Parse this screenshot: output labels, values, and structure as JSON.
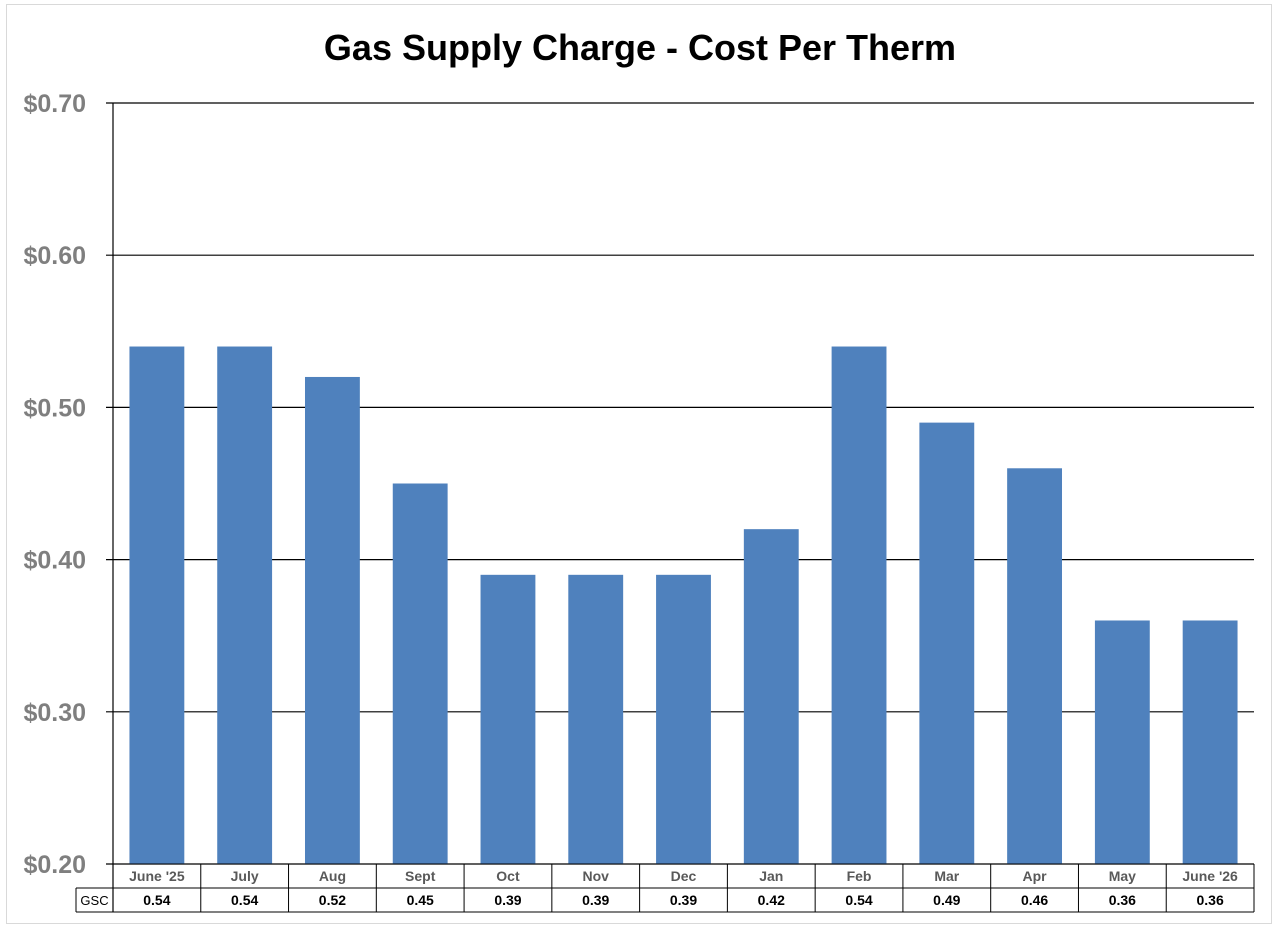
{
  "chart_data": {
    "type": "bar",
    "title": "Gas Supply Charge - Cost Per Therm",
    "categories": [
      "June '25",
      "July",
      "Aug",
      "Sept",
      "Oct",
      "Nov",
      "Dec",
      "Jan",
      "Feb",
      "Mar",
      "Apr",
      "May",
      "June '26"
    ],
    "series": [
      {
        "name": "GSC",
        "values": [
          0.54,
          0.54,
          0.52,
          0.45,
          0.39,
          0.39,
          0.39,
          0.42,
          0.54,
          0.49,
          0.46,
          0.36,
          0.36
        ],
        "color": "#4f81bd"
      }
    ],
    "table_values": [
      "0.54",
      "0.54",
      "0.52",
      "0.45",
      "0.39",
      "0.39",
      "0.39",
      "0.42",
      "0.54",
      "0.49",
      "0.46",
      "0.36",
      "0.36"
    ],
    "ylim": [
      0.2,
      0.7
    ],
    "yticks": [
      {
        "value": 0.2,
        "label": "$0.20"
      },
      {
        "value": 0.3,
        "label": "$0.30"
      },
      {
        "value": 0.4,
        "label": "$0.40"
      },
      {
        "value": 0.5,
        "label": "$0.50"
      },
      {
        "value": 0.6,
        "label": "$0.60"
      },
      {
        "value": 0.7,
        "label": "$0.70"
      }
    ],
    "grid": true,
    "xlabel": "",
    "ylabel": "",
    "data_table": true
  }
}
